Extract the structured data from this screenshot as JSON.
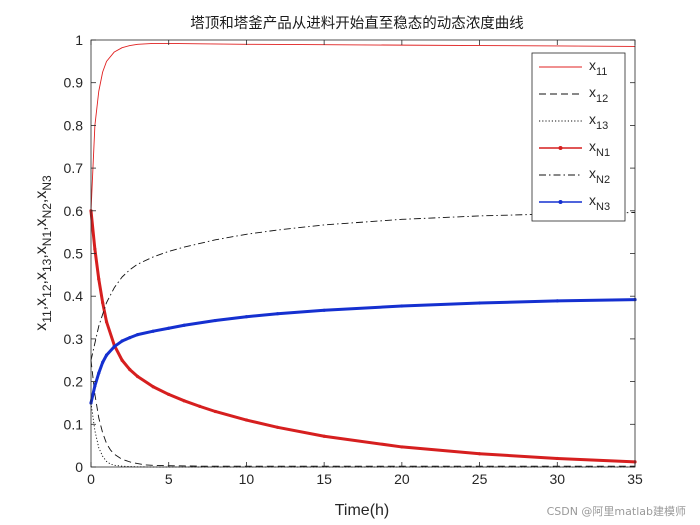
{
  "chart_data": {
    "type": "line",
    "title": "塔顶和塔釜产品从进料开始直至稳态的动态浓度曲线",
    "xlabel": "Time(h)",
    "ylabel": "x11,x12,x13,xN1,xN2,xN3",
    "ylabel_parts": [
      {
        "base": "x",
        "sub": "11",
        "sep": ","
      },
      {
        "base": "x",
        "sub": "12",
        "sep": ","
      },
      {
        "base": "x",
        "sub": "13",
        "sep": ","
      },
      {
        "base": "x",
        "sub": "N1",
        "sep": ","
      },
      {
        "base": "x",
        "sub": "N2",
        "sep": ","
      },
      {
        "base": "x",
        "sub": "N3",
        "sep": ""
      }
    ],
    "xlim": [
      0,
      35
    ],
    "ylim": [
      0,
      1
    ],
    "xticks": [
      0,
      5,
      10,
      15,
      20,
      25,
      30,
      35
    ],
    "yticks": [
      0,
      0.1,
      0.2,
      0.3,
      0.4,
      0.5,
      0.6,
      0.7,
      0.8,
      0.9,
      1
    ],
    "legend_position": "top-right",
    "grid": false,
    "series": [
      {
        "name": "x11",
        "label_base": "x",
        "label_sub": "11",
        "color": "#e02020",
        "style": "solid",
        "width": 0.9,
        "x": [
          0,
          0.25,
          0.5,
          0.75,
          1,
          1.5,
          2,
          2.5,
          3,
          4,
          5,
          7,
          10,
          15,
          20,
          25,
          30,
          35
        ],
        "y": [
          0.6,
          0.8,
          0.88,
          0.925,
          0.95,
          0.972,
          0.982,
          0.987,
          0.99,
          0.992,
          0.992,
          0.991,
          0.99,
          0.989,
          0.988,
          0.987,
          0.986,
          0.985
        ]
      },
      {
        "name": "x12",
        "label_base": "x",
        "label_sub": "12",
        "color": "#111111",
        "style": "dashed",
        "width": 0.9,
        "x": [
          0,
          0.25,
          0.5,
          0.75,
          1,
          1.25,
          1.5,
          2,
          2.5,
          3,
          3.5,
          4,
          5,
          7,
          10,
          15,
          20,
          25,
          30,
          35
        ],
        "y": [
          0.25,
          0.17,
          0.115,
          0.08,
          0.055,
          0.04,
          0.03,
          0.018,
          0.012,
          0.008,
          0.005,
          0.004,
          0.003,
          0.002,
          0.002,
          0.002,
          0.002,
          0.002,
          0.002,
          0.002
        ]
      },
      {
        "name": "x13",
        "label_base": "x",
        "label_sub": "13",
        "color": "#111111",
        "style": "dotted",
        "width": 0.9,
        "x": [
          0,
          0.25,
          0.5,
          0.75,
          1,
          1.25,
          1.5,
          2,
          2.5,
          3,
          4,
          5,
          10,
          20,
          35
        ],
        "y": [
          0.15,
          0.085,
          0.045,
          0.025,
          0.013,
          0.007,
          0.004,
          0.002,
          0.001,
          0.0005,
          0,
          0,
          0,
          0,
          0
        ]
      },
      {
        "name": "xN1",
        "label_base": "x",
        "label_sub": "N1",
        "color": "#d61f1f",
        "style": "solid",
        "width": 3,
        "marker": true,
        "x": [
          0,
          0.25,
          0.5,
          0.75,
          1,
          1.5,
          2,
          2.5,
          3,
          4,
          5,
          6,
          7,
          8,
          10,
          12,
          15,
          20,
          25,
          30,
          35
        ],
        "y": [
          0.6,
          0.51,
          0.44,
          0.385,
          0.34,
          0.285,
          0.25,
          0.228,
          0.212,
          0.188,
          0.17,
          0.155,
          0.142,
          0.13,
          0.11,
          0.093,
          0.072,
          0.047,
          0.031,
          0.02,
          0.012
        ]
      },
      {
        "name": "xN2",
        "label_base": "x",
        "label_sub": "N2",
        "color": "#111111",
        "style": "dashdot",
        "width": 0.9,
        "x": [
          0,
          0.5,
          1,
          1.5,
          2,
          2.5,
          3,
          4,
          5,
          6,
          8,
          10,
          12,
          15,
          20,
          25,
          30,
          35
        ],
        "y": [
          0.25,
          0.33,
          0.385,
          0.42,
          0.445,
          0.462,
          0.475,
          0.492,
          0.505,
          0.515,
          0.532,
          0.545,
          0.555,
          0.567,
          0.58,
          0.588,
          0.593,
          0.596
        ]
      },
      {
        "name": "xN3",
        "label_base": "x",
        "label_sub": "N3",
        "color": "#1530d0",
        "style": "solid",
        "width": 3,
        "marker": true,
        "x": [
          0,
          0.25,
          0.5,
          0.75,
          1,
          1.5,
          2,
          2.5,
          3,
          4,
          5,
          6,
          8,
          10,
          12,
          15,
          20,
          25,
          30,
          35
        ],
        "y": [
          0.15,
          0.19,
          0.22,
          0.245,
          0.262,
          0.282,
          0.295,
          0.303,
          0.31,
          0.318,
          0.325,
          0.332,
          0.343,
          0.352,
          0.359,
          0.367,
          0.377,
          0.384,
          0.389,
          0.392
        ]
      }
    ]
  },
  "watermark": "CSDN @阿里matlab建模师"
}
